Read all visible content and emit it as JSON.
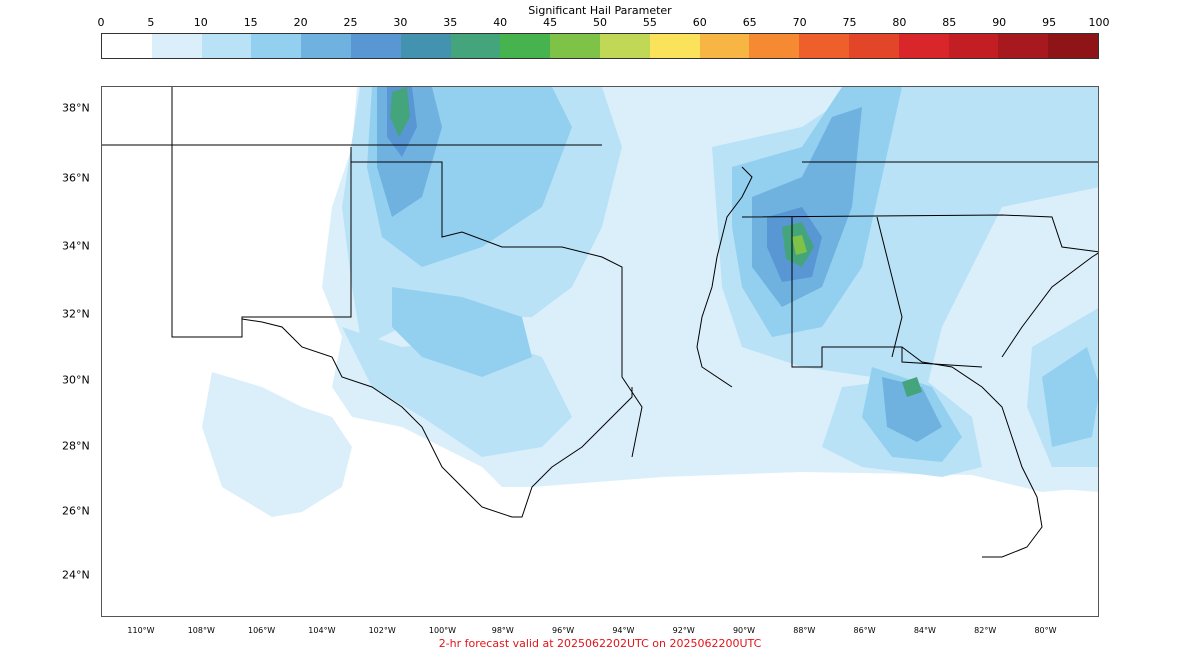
{
  "colorbar": {
    "title": "Significant Hail Parameter",
    "ticks": [
      "0",
      "5",
      "10",
      "15",
      "20",
      "25",
      "30",
      "35",
      "40",
      "45",
      "50",
      "55",
      "60",
      "65",
      "70",
      "75",
      "80",
      "85",
      "90",
      "95",
      "100"
    ],
    "colors": [
      "#ffffff",
      "#dbeffb",
      "#b9e2f6",
      "#93d0f0",
      "#6fb2e0",
      "#5896d4",
      "#4392b0",
      "#44a57c",
      "#46b34f",
      "#7fc248",
      "#c0d856",
      "#fbe25b",
      "#f7b544",
      "#f58a33",
      "#ef5f2b",
      "#e34528",
      "#d8262a",
      "#c31e24",
      "#a8191f",
      "#8e1418"
    ]
  },
  "map": {
    "lat_labels": [
      "38°N",
      "36°N",
      "34°N",
      "32°N",
      "30°N",
      "28°N",
      "26°N",
      "24°N"
    ],
    "lon_labels": [
      "110°W",
      "108°W",
      "106°W",
      "104°W",
      "102°W",
      "100°W",
      "98°W",
      "96°W",
      "94°W",
      "92°W",
      "90°W",
      "88°W",
      "86°W",
      "84°W",
      "82°W",
      "80°W"
    ],
    "field_colors": {
      "light": "#dbeffb",
      "light2": "#b9e2f6",
      "mid": "#93d0f0",
      "mid2": "#6fb2e0",
      "dark": "#5896d4",
      "teal": "#4392b0",
      "green": "#44a57c",
      "lime": "#7fc248",
      "yellow": "#c0d856"
    }
  },
  "footer": "2-hr forecast valid at 2025062202UTC on 2025062200UTC"
}
